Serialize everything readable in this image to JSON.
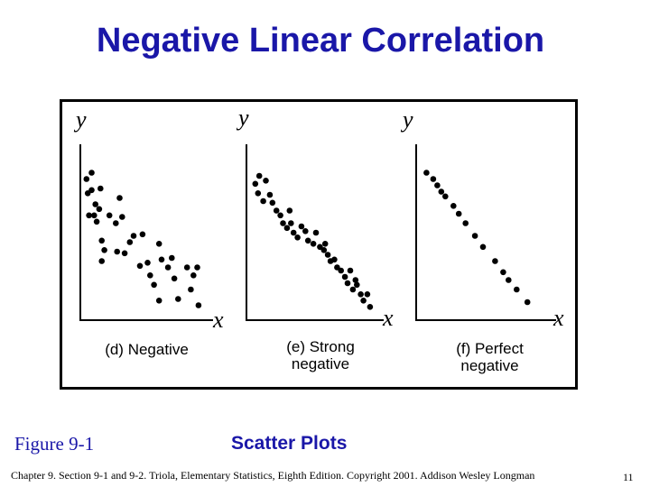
{
  "slide": {
    "title": "Negative Linear Correlation",
    "figure_label": "Figure 9-1",
    "section_title": "Scatter Plots",
    "footer": "Chapter 9.  Section 9-1 and 9-2.  Triola, Elementary Statistics, Eighth Edition. Copyright  2001.  Addison Wesley Longman",
    "page_number": "11"
  },
  "colors": {
    "title": "#1a17a8",
    "points": "#000000"
  },
  "chart_data": [
    {
      "type": "scatter",
      "caption": [
        "(d) Negative",
        ""
      ],
      "xlabel": "x",
      "ylabel": "y",
      "xlim": [
        0,
        10
      ],
      "ylim": [
        0,
        10
      ],
      "points": [
        [
          0.2,
          8.6
        ],
        [
          0.3,
          7.7
        ],
        [
          0.4,
          6.3
        ],
        [
          0.6,
          7.9
        ],
        [
          0.6,
          9.0
        ],
        [
          0.8,
          6.3
        ],
        [
          0.9,
          7.0
        ],
        [
          1.0,
          5.9
        ],
        [
          1.2,
          6.7
        ],
        [
          1.3,
          8.0
        ],
        [
          1.4,
          4.7
        ],
        [
          1.4,
          3.4
        ],
        [
          1.6,
          4.1
        ],
        [
          2.0,
          6.3
        ],
        [
          2.5,
          5.8
        ],
        [
          2.6,
          4.0
        ],
        [
          2.8,
          7.4
        ],
        [
          3.0,
          6.2
        ],
        [
          3.2,
          3.9
        ],
        [
          3.6,
          4.6
        ],
        [
          3.9,
          5.0
        ],
        [
          4.6,
          5.1
        ],
        [
          5.2,
          2.5
        ],
        [
          4.4,
          3.1
        ],
        [
          5.0,
          3.3
        ],
        [
          5.5,
          1.9
        ],
        [
          5.9,
          4.5
        ],
        [
          6.1,
          3.5
        ],
        [
          5.9,
          0.9
        ],
        [
          6.6,
          3.0
        ],
        [
          6.9,
          3.6
        ],
        [
          7.1,
          2.3
        ],
        [
          7.4,
          1.0
        ],
        [
          8.1,
          3.0
        ],
        [
          8.4,
          1.6
        ],
        [
          8.6,
          2.5
        ],
        [
          8.9,
          3.0
        ],
        [
          9.0,
          0.6
        ]
      ]
    },
    {
      "type": "scatter",
      "caption": [
        "(e) Strong",
        "negative"
      ],
      "xlabel": "x",
      "ylabel": "y",
      "xlim": [
        0,
        10
      ],
      "ylim": [
        0,
        10
      ],
      "points": [
        [
          0.4,
          8.3
        ],
        [
          0.6,
          7.7
        ],
        [
          0.7,
          8.8
        ],
        [
          1.0,
          7.2
        ],
        [
          1.2,
          8.5
        ],
        [
          1.5,
          7.6
        ],
        [
          1.7,
          7.1
        ],
        [
          2.0,
          6.6
        ],
        [
          2.3,
          6.3
        ],
        [
          2.5,
          5.8
        ],
        [
          2.8,
          5.5
        ],
        [
          3.1,
          5.8
        ],
        [
          3.3,
          5.2
        ],
        [
          3.6,
          4.9
        ],
        [
          3.9,
          5.6
        ],
        [
          4.2,
          5.3
        ],
        [
          4.4,
          4.7
        ],
        [
          4.8,
          4.5
        ],
        [
          5.0,
          5.2
        ],
        [
          5.3,
          4.3
        ],
        [
          5.6,
          4.1
        ],
        [
          5.9,
          3.8
        ],
        [
          6.1,
          3.4
        ],
        [
          6.4,
          3.5
        ],
        [
          6.6,
          3.0
        ],
        [
          6.9,
          2.8
        ],
        [
          7.2,
          2.4
        ],
        [
          7.4,
          2.0
        ],
        [
          7.6,
          2.8
        ],
        [
          7.8,
          1.6
        ],
        [
          8.1,
          1.9
        ],
        [
          8.4,
          1.3
        ],
        [
          8.6,
          0.9
        ],
        [
          8.9,
          1.3
        ],
        [
          9.1,
          0.5
        ],
        [
          8.0,
          2.2
        ],
        [
          5.7,
          4.5
        ],
        [
          3.0,
          6.6
        ]
      ]
    },
    {
      "type": "scatter",
      "caption": [
        "(f) Perfect",
        "negative"
      ],
      "xlabel": "x",
      "ylabel": "y",
      "xlim": [
        0,
        10
      ],
      "ylim": [
        0,
        10
      ],
      "points": [
        [
          0.5,
          9.0
        ],
        [
          1.0,
          8.6
        ],
        [
          1.3,
          8.2
        ],
        [
          1.6,
          7.8
        ],
        [
          1.9,
          7.5
        ],
        [
          2.5,
          6.9
        ],
        [
          2.9,
          6.4
        ],
        [
          3.4,
          5.8
        ],
        [
          4.1,
          5.0
        ],
        [
          4.7,
          4.3
        ],
        [
          5.6,
          3.4
        ],
        [
          6.2,
          2.7
        ],
        [
          6.6,
          2.2
        ],
        [
          7.2,
          1.6
        ],
        [
          8.0,
          0.8
        ]
      ]
    }
  ]
}
